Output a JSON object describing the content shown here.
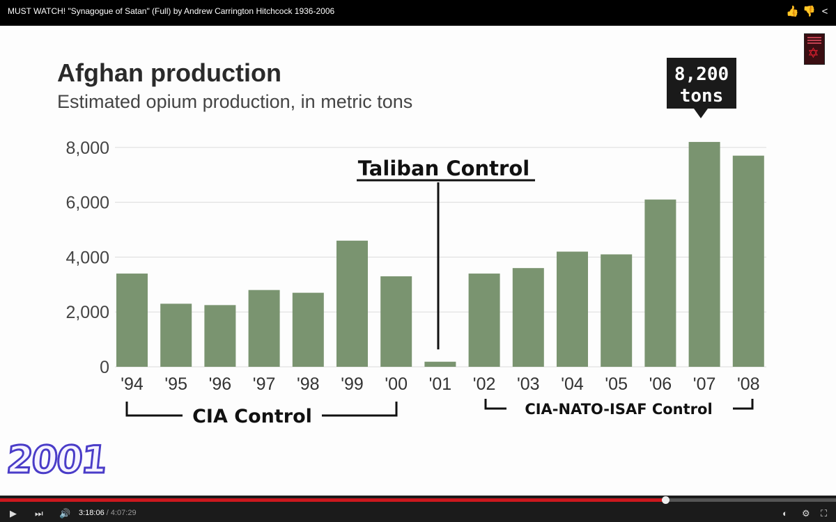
{
  "window": {
    "title": "MUST WATCH! \"Synagogue of Satan\" (Full) by Andrew Carrington Hitchcock 1936-2006",
    "icons": [
      "thumbs-up-icon",
      "thumbs-down-icon",
      "share-icon"
    ]
  },
  "chart_data": {
    "type": "bar",
    "title": "Afghan production",
    "subtitle": "Estimated opium production, in metric tons",
    "categories": [
      "'94",
      "'95",
      "'96",
      "'97",
      "'98",
      "'99",
      "'00",
      "'01",
      "'02",
      "'03",
      "'04",
      "'05",
      "'06",
      "'07",
      "'08"
    ],
    "values": [
      3400,
      2300,
      2250,
      2800,
      2700,
      4600,
      3300,
      185,
      3400,
      3600,
      4200,
      4100,
      6100,
      8200,
      7700
    ],
    "yticks": [
      "0",
      "2,000",
      "4,000",
      "6,000",
      "8,000"
    ],
    "ylim": [
      0,
      8300
    ],
    "grid": true,
    "bar_color": "#7a9470",
    "annotations": {
      "peak_callout": [
        "8,200",
        "tons"
      ],
      "taliban": "Taliban Control",
      "cia": "CIA Control",
      "nato": "CIA-NATO-ISAF Control"
    }
  },
  "overlay": {
    "watermark": "2001"
  },
  "player": {
    "current_time": "3:18:06",
    "separator": " / ",
    "duration": "4:07:29",
    "progress_fraction": 0.796,
    "accent_color": "#cc181e"
  }
}
